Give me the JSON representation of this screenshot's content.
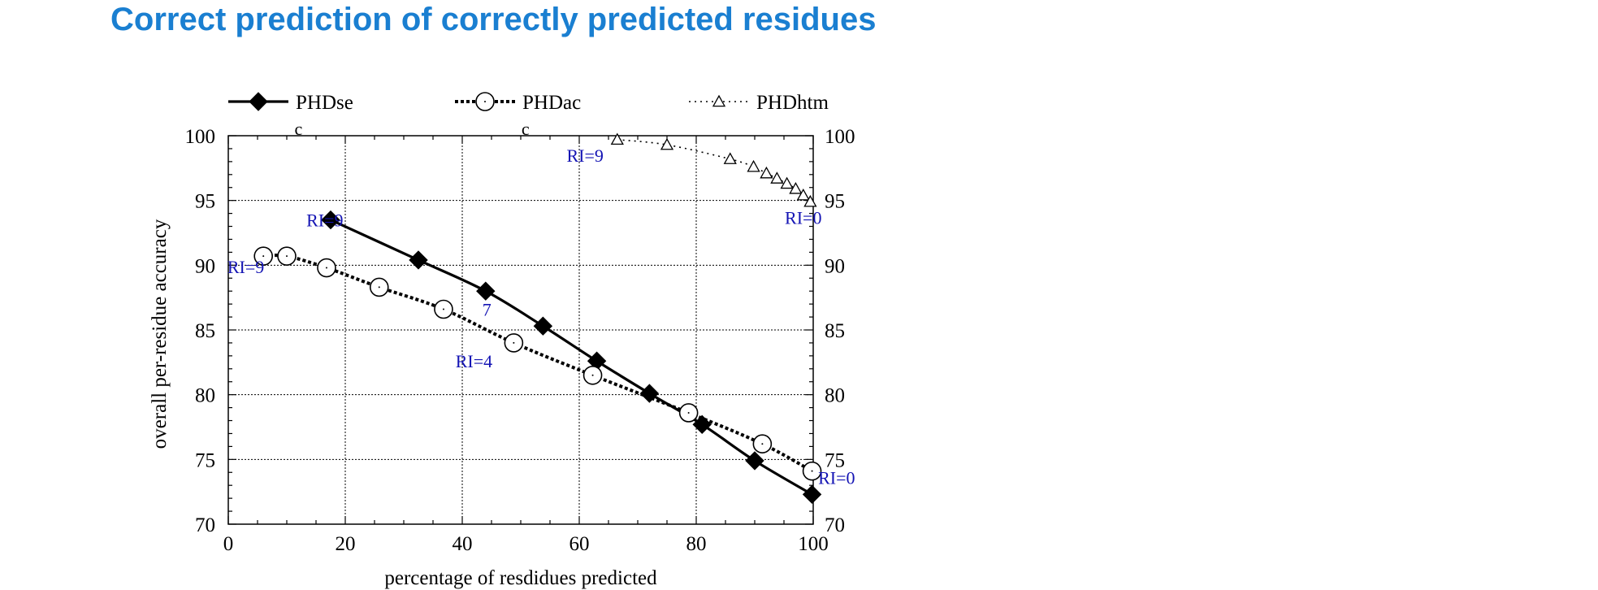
{
  "page": {
    "title": "Correct prediction of correctly predicted residues"
  },
  "chart_data": {
    "type": "line",
    "title": "",
    "xlabel": "percentage of resdidues predicted",
    "ylabel": "overall per-residue accuracy",
    "xlim": [
      0,
      100
    ],
    "ylim": [
      70,
      100
    ],
    "x_ticks": [
      0,
      20,
      40,
      60,
      80,
      100
    ],
    "y_ticks": [
      70,
      75,
      80,
      85,
      90,
      95,
      100
    ],
    "grid": true,
    "legend_position": "top",
    "series": [
      {
        "name": "PHDse",
        "marker": "filled-diamond",
        "line_style": "solid",
        "color": "#000000",
        "x": [
          17.5,
          32.5,
          44.0,
          53.8,
          63.0,
          72.0,
          81.0,
          90.0,
          99.8
        ],
        "y": [
          93.5,
          90.4,
          88.0,
          85.3,
          82.6,
          80.1,
          77.7,
          74.9,
          72.3
        ]
      },
      {
        "name": "PHDac",
        "marker": "open-circle",
        "line_style": "dashed",
        "color": "#000000",
        "x": [
          6.0,
          10.0,
          16.8,
          25.8,
          36.8,
          48.8,
          62.3,
          78.7,
          91.3,
          99.8
        ],
        "y": [
          90.7,
          90.7,
          89.8,
          88.3,
          86.6,
          84.0,
          81.5,
          78.6,
          76.2,
          74.1
        ]
      },
      {
        "name": "PHDhtm",
        "marker": "open-triangle",
        "line_style": "dotted",
        "color": "#000000",
        "x": [
          66.5,
          75.0,
          85.8,
          89.8,
          92.0,
          93.8,
          95.5,
          97.0,
          98.3,
          99.5
        ],
        "y": [
          99.7,
          99.3,
          98.2,
          97.6,
          97.1,
          96.7,
          96.3,
          95.9,
          95.4,
          94.9
        ]
      }
    ],
    "annotations": [
      {
        "text": "RI=9",
        "x": 16.5,
        "y": 93.0
      },
      {
        "text": "RI=9",
        "x": 3.0,
        "y": 89.4
      },
      {
        "text": "7",
        "x": 44.2,
        "y": 86.1
      },
      {
        "text": "RI=4",
        "x": 42.0,
        "y": 82.1
      },
      {
        "text": "RI=9",
        "x": 61.0,
        "y": 98.0
      },
      {
        "text": "RI=0",
        "x": 98.3,
        "y": 93.2
      },
      {
        "text": "RI=0",
        "x": 104.0,
        "y": 73.1
      }
    ],
    "corner_marks": [
      {
        "text": "c",
        "x": 12.0
      },
      {
        "text": "c",
        "x": 50.8
      }
    ]
  }
}
